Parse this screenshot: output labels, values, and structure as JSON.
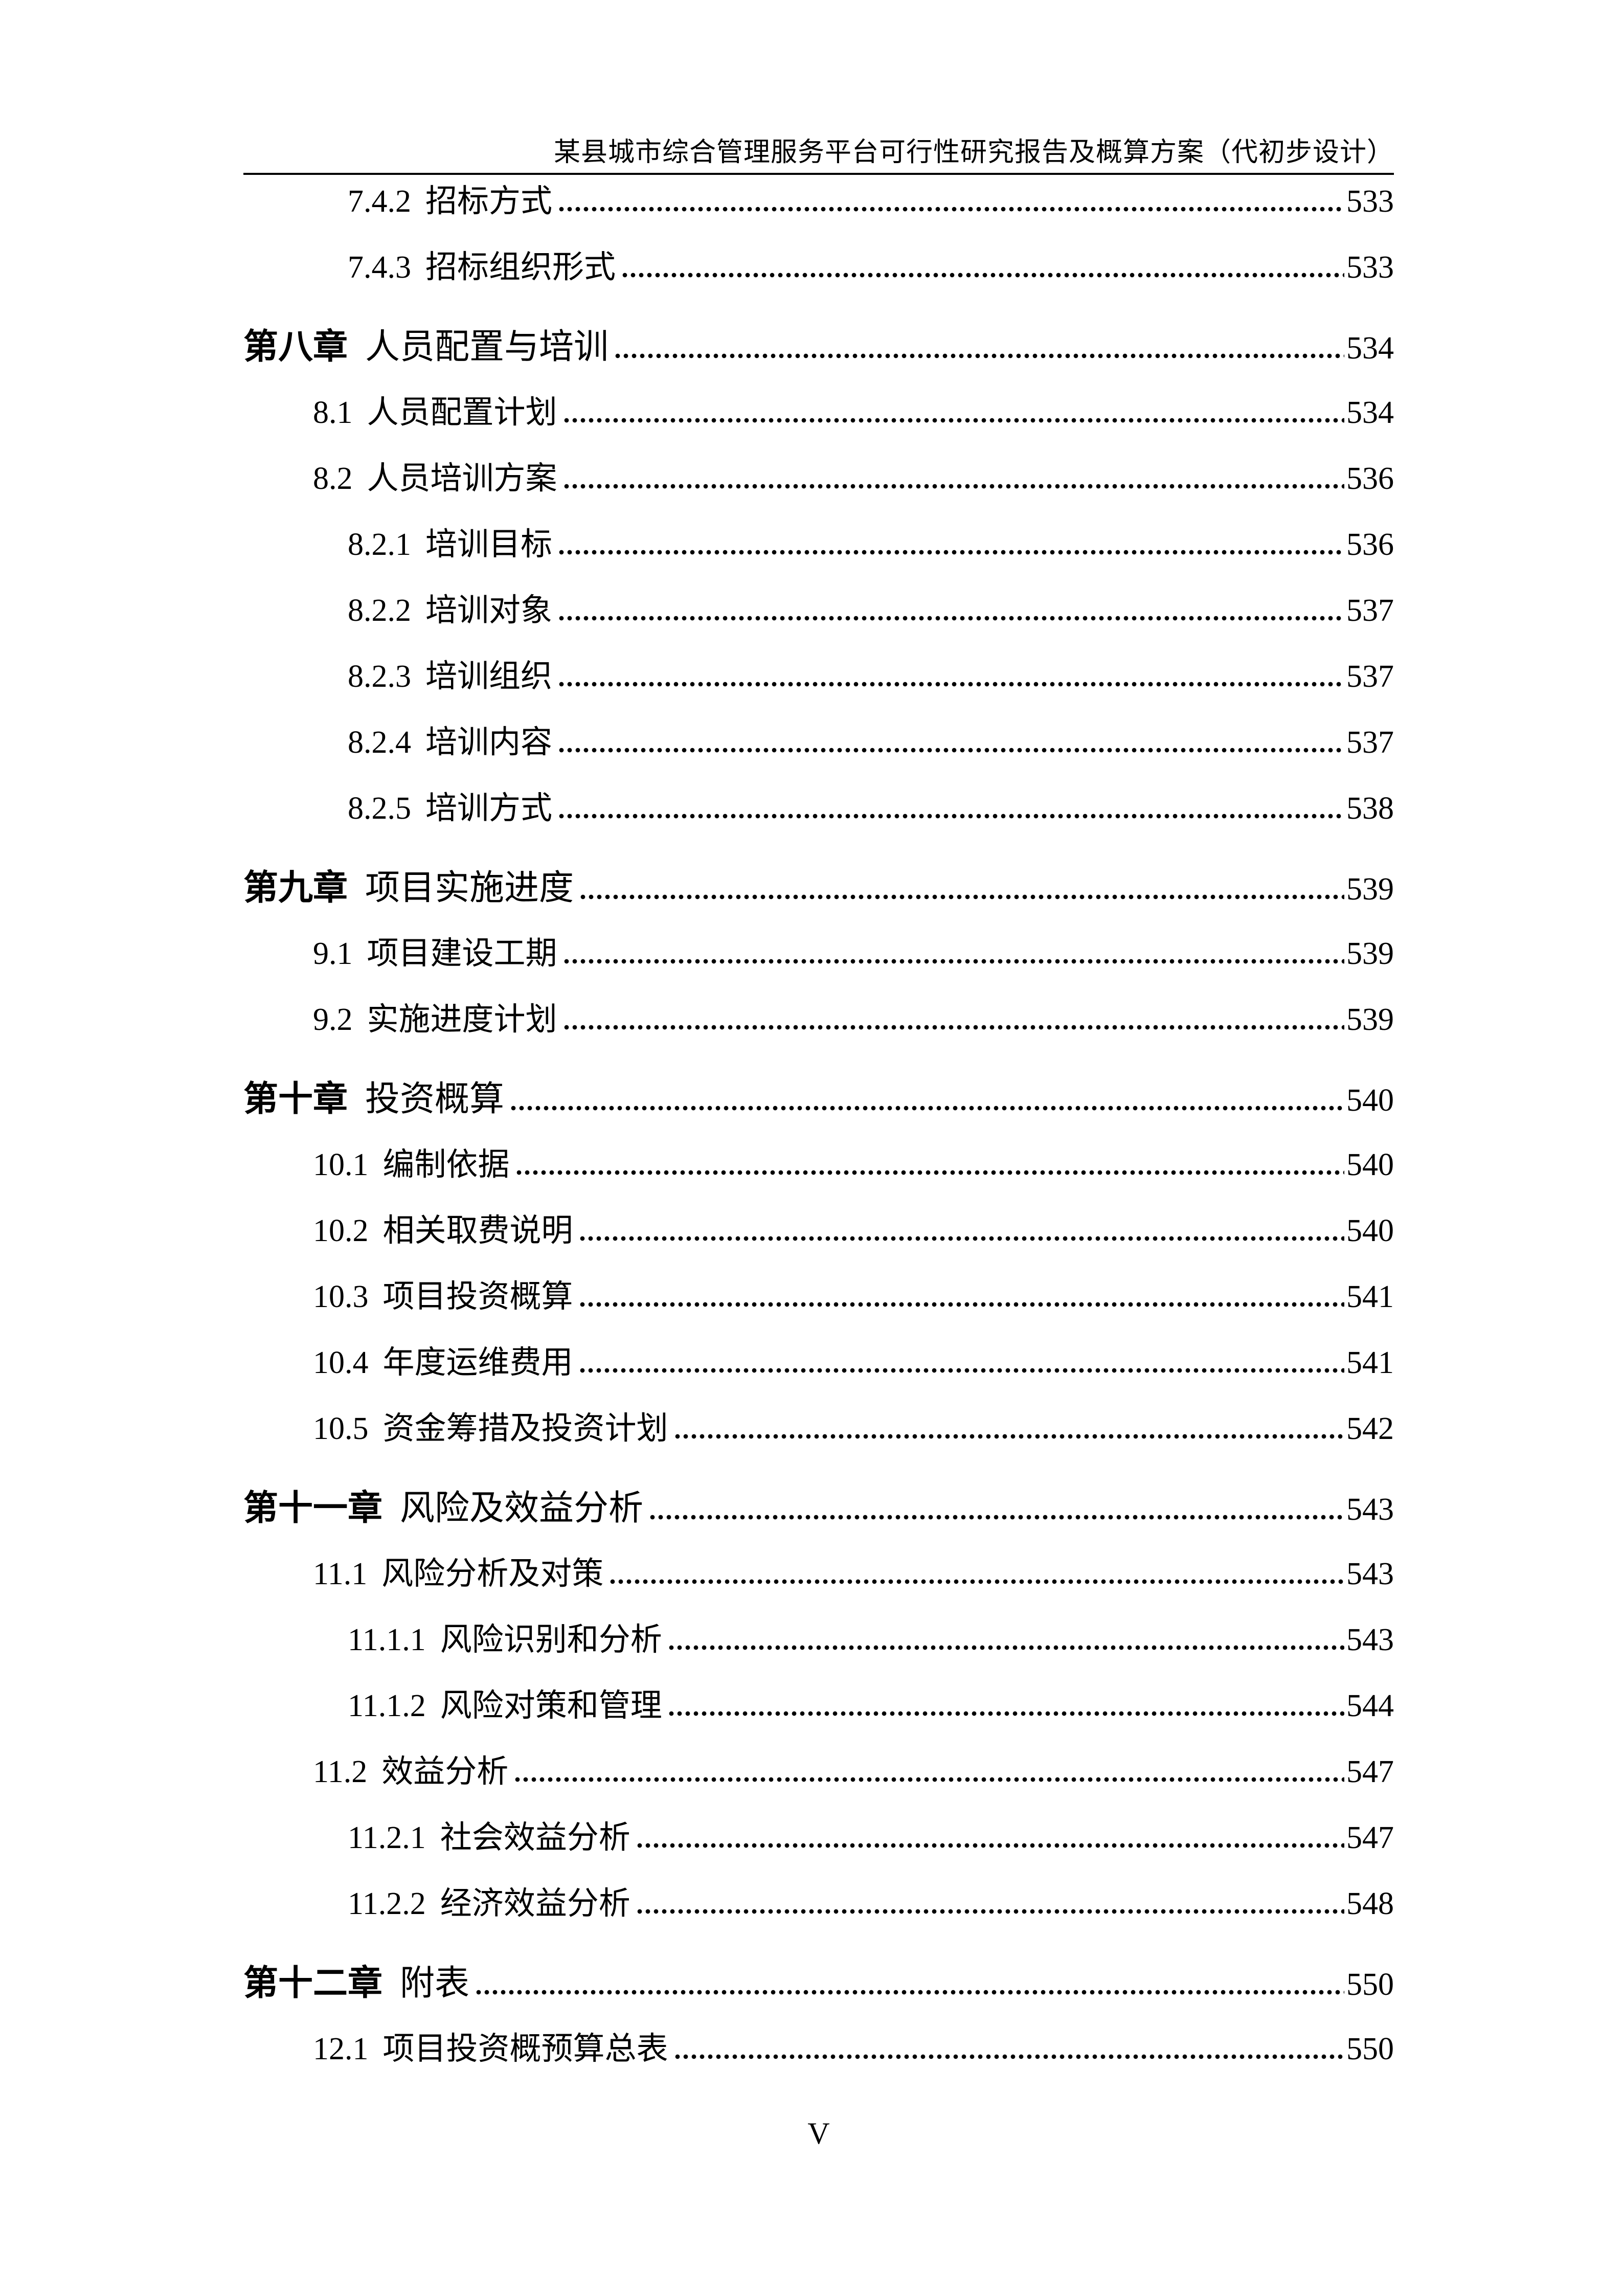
{
  "header": {
    "title": "某县城市综合管理服务平台可行性研究报告及概算方案（代初步设计）"
  },
  "toc": {
    "entries": [
      {
        "level": 3,
        "number": "7.4.2",
        "title": "招标方式",
        "page": "533"
      },
      {
        "level": 3,
        "number": "7.4.3",
        "title": "招标组织形式",
        "page": "533"
      },
      {
        "level": 1,
        "number": "第八章",
        "title": "人员配置与培训",
        "page": "534"
      },
      {
        "level": 2,
        "number": "8.1",
        "title": "人员配置计划",
        "page": "534"
      },
      {
        "level": 2,
        "number": "8.2",
        "title": "人员培训方案",
        "page": "536"
      },
      {
        "level": 3,
        "number": "8.2.1",
        "title": "培训目标",
        "page": "536"
      },
      {
        "level": 3,
        "number": "8.2.2",
        "title": "培训对象",
        "page": "537"
      },
      {
        "level": 3,
        "number": "8.2.3",
        "title": "培训组织",
        "page": "537"
      },
      {
        "level": 3,
        "number": "8.2.4",
        "title": "培训内容",
        "page": "537"
      },
      {
        "level": 3,
        "number": "8.2.5",
        "title": "培训方式",
        "page": "538"
      },
      {
        "level": 1,
        "number": "第九章",
        "title": "项目实施进度",
        "page": "539"
      },
      {
        "level": 2,
        "number": "9.1",
        "title": "项目建设工期",
        "page": "539"
      },
      {
        "level": 2,
        "number": "9.2",
        "title": "实施进度计划",
        "page": "539"
      },
      {
        "level": 1,
        "number": "第十章",
        "title": "投资概算",
        "page": "540"
      },
      {
        "level": 2,
        "number": "10.1",
        "title": "编制依据",
        "page": "540"
      },
      {
        "level": 2,
        "number": "10.2",
        "title": "相关取费说明",
        "page": "540"
      },
      {
        "level": 2,
        "number": "10.3",
        "title": "项目投资概算",
        "page": "541"
      },
      {
        "level": 2,
        "number": "10.4",
        "title": "年度运维费用",
        "page": "541"
      },
      {
        "level": 2,
        "number": "10.5",
        "title": "资金筹措及投资计划",
        "page": "542"
      },
      {
        "level": 1,
        "number": "第十一章",
        "title": "风险及效益分析",
        "page": "543"
      },
      {
        "level": 2,
        "number": "11.1",
        "title": "风险分析及对策",
        "page": "543"
      },
      {
        "level": 3,
        "number": "11.1.1",
        "title": "风险识别和分析",
        "page": "543"
      },
      {
        "level": 3,
        "number": "11.1.2",
        "title": "风险对策和管理",
        "page": "544"
      },
      {
        "level": 2,
        "number": "11.2",
        "title": "效益分析",
        "page": "547"
      },
      {
        "level": 3,
        "number": "11.2.1",
        "title": "社会效益分析",
        "page": "547"
      },
      {
        "level": 3,
        "number": "11.2.2",
        "title": "经济效益分析",
        "page": "548"
      },
      {
        "level": 1,
        "number": "第十二章",
        "title": "附表",
        "page": "550"
      },
      {
        "level": 2,
        "number": "12.1",
        "title": "项目投资概预算总表",
        "page": "550"
      }
    ]
  },
  "footer": {
    "page_number": "V"
  }
}
